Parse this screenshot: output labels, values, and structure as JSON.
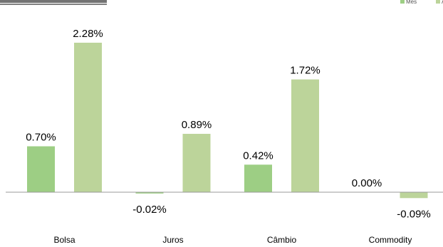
{
  "chart_data": {
    "type": "bar",
    "categories": [
      "Bolsa",
      "Juros",
      "Câmbio",
      "Commodity"
    ],
    "series": [
      {
        "name": "Mês",
        "color": "#9dce84",
        "values": [
          0.7,
          -0.02,
          0.42,
          0.0
        ],
        "labels": [
          "0.70%",
          "-0.02%",
          "0.42%",
          "0.00%"
        ]
      },
      {
        "name": "A",
        "color": "#bcd49a",
        "values": [
          2.28,
          0.89,
          1.72,
          -0.09
        ],
        "labels": [
          "2.28%",
          "0.89%",
          "1.72%",
          "-0.09%"
        ]
      }
    ],
    "legend_position": "top-right",
    "title": "",
    "xlabel": "",
    "ylabel": "",
    "grid": false
  },
  "colors": {
    "axis": "#999999",
    "text": "#000000"
  }
}
